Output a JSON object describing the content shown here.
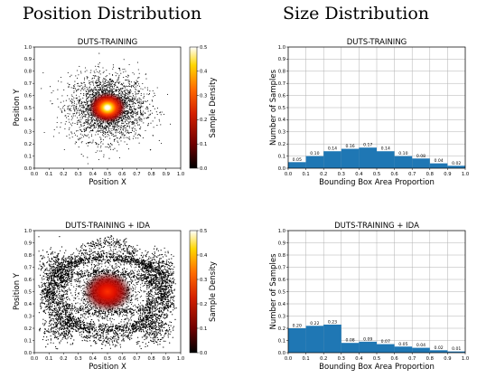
{
  "headings": {
    "left": "Position Distribution",
    "right": "Size Distribution"
  },
  "colors": {
    "bar": "#1f77b4",
    "grid": "#b0b0b0",
    "scatter_point": "#000000",
    "density_colormap": [
      "#000000",
      "#700000",
      "#d42000",
      "#ff6a00",
      "#ffd700",
      "#ffffff"
    ]
  },
  "chart_data": [
    {
      "type": "scatter",
      "title": "DUTS-TRAINING",
      "xlabel": "Position X",
      "ylabel": "Position Y",
      "xlim": [
        0.0,
        1.0
      ],
      "ylim": [
        0.0,
        1.0
      ],
      "xticks": [
        "0.0",
        "0.1",
        "0.2",
        "0.3",
        "0.4",
        "0.5",
        "0.6",
        "0.7",
        "0.8",
        "0.9",
        "1.0"
      ],
      "yticks": [
        "0.0",
        "0.1",
        "0.2",
        "0.3",
        "0.4",
        "0.5",
        "0.6",
        "0.7",
        "0.8",
        "0.9",
        "1.0"
      ],
      "colorbar": {
        "label": "Sample Density",
        "range": [
          0.0,
          0.5
        ],
        "ticks": [
          "0.0",
          "0.1",
          "0.2",
          "0.3",
          "0.4",
          "0.5"
        ]
      },
      "distribution": {
        "center": [
          0.5,
          0.5
        ],
        "spread": 0.13,
        "shape": "gaussian"
      },
      "grid": false
    },
    {
      "type": "bar",
      "title": "DUTS-TRAINING",
      "xlabel": "Bounding Box Area Proportion",
      "ylabel": "Number of Samples",
      "bin_edges": [
        0.0,
        0.1,
        0.2,
        0.3,
        0.4,
        0.5,
        0.6,
        0.7,
        0.8,
        0.9,
        1.0
      ],
      "values": [
        0.05,
        0.1,
        0.14,
        0.16,
        0.17,
        0.14,
        0.1,
        0.08,
        0.04,
        0.02
      ],
      "value_labels": [
        "0.05",
        "0.10",
        "0.14",
        "0.16",
        "0.17",
        "0.14",
        "0.10",
        "0.08",
        "0.04",
        "0.02"
      ],
      "xticks": [
        "0.0",
        "0.1",
        "0.2",
        "0.3",
        "0.4",
        "0.5",
        "0.6",
        "0.7",
        "0.8",
        "0.9",
        "1.0"
      ],
      "yticks": [
        "0.0",
        "0.1",
        "0.2",
        "0.3",
        "0.4",
        "0.5",
        "0.6",
        "0.7",
        "0.8",
        "0.9",
        "1.0"
      ],
      "xlim": [
        0.0,
        1.0
      ],
      "ylim": [
        0.0,
        1.0
      ],
      "grid": true
    },
    {
      "type": "scatter",
      "title": "DUTS-TRAINING + IDA",
      "xlabel": "Position X",
      "ylabel": "Position Y",
      "xlim": [
        0.0,
        1.0
      ],
      "ylim": [
        0.0,
        1.0
      ],
      "xticks": [
        "0.0",
        "0.1",
        "0.2",
        "0.3",
        "0.4",
        "0.5",
        "0.6",
        "0.7",
        "0.8",
        "0.9",
        "1.0"
      ],
      "yticks": [
        "0.0",
        "0.1",
        "0.2",
        "0.3",
        "0.4",
        "0.5",
        "0.6",
        "0.7",
        "0.8",
        "0.9",
        "1.0"
      ],
      "colorbar": {
        "label": "Sample Density",
        "range": [
          0.0,
          0.5
        ],
        "ticks": [
          "0.0",
          "0.1",
          "0.2",
          "0.3",
          "0.4",
          "0.5"
        ]
      },
      "distribution": {
        "center": [
          0.5,
          0.5
        ],
        "shape": "central cluster with surrounding elliptical rings"
      },
      "grid": false
    },
    {
      "type": "bar",
      "title": "DUTS-TRAINING + IDA",
      "xlabel": "Bounding Box Area Proportion",
      "ylabel": "Number of Samples",
      "bin_edges": [
        0.0,
        0.1,
        0.2,
        0.3,
        0.4,
        0.5,
        0.6,
        0.7,
        0.8,
        0.9,
        1.0
      ],
      "values": [
        0.2,
        0.22,
        0.23,
        0.08,
        0.09,
        0.07,
        0.05,
        0.04,
        0.02,
        0.01
      ],
      "value_labels": [
        "0.20",
        "0.22",
        "0.23",
        "0.08",
        "0.09",
        "0.07",
        "0.05",
        "0.04",
        "0.02",
        "0.01"
      ],
      "xticks": [
        "0.0",
        "0.1",
        "0.2",
        "0.3",
        "0.4",
        "0.5",
        "0.6",
        "0.7",
        "0.8",
        "0.9",
        "1.0"
      ],
      "yticks": [
        "0.0",
        "0.1",
        "0.2",
        "0.3",
        "0.4",
        "0.5",
        "0.6",
        "0.7",
        "0.8",
        "0.9",
        "1.0"
      ],
      "xlim": [
        0.0,
        1.0
      ],
      "ylim": [
        0.0,
        1.0
      ],
      "grid": true
    }
  ]
}
